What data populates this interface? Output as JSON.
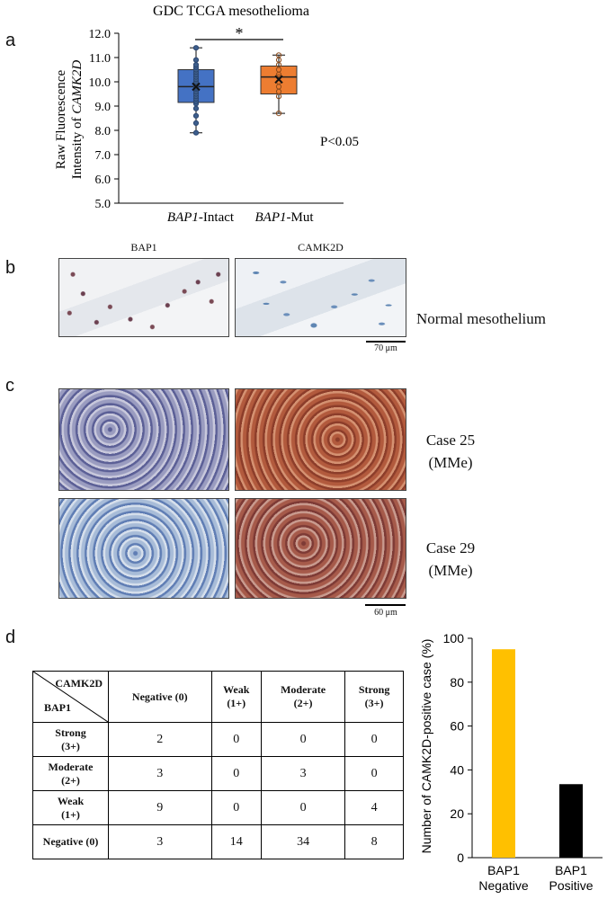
{
  "panel_labels": {
    "a": "a",
    "b": "b",
    "c": "c",
    "d": "d"
  },
  "panel_a": {
    "title": "GDC TCGA mesothelioma",
    "ylabel_plain": "Raw Fluorescence",
    "ylabel_prefix": "Intensity of ",
    "ylabel_gene": "CAMK2D",
    "yticks": [
      "12.0",
      "11.0",
      "10.0",
      "9.0",
      "8.0",
      "7.0",
      "6.0",
      "5.0"
    ],
    "group1_gene": "BAP1",
    "group1_suffix": "-Intact",
    "group2_gene": "BAP1",
    "group2_suffix": "-Mut",
    "significance": "*",
    "pvalue": "P<0.05"
  },
  "panel_b": {
    "col1": "BAP1",
    "col2": "CAMK2D",
    "row_label": "Normal mesothelium",
    "scale": "70 μm"
  },
  "panel_c": {
    "row1_line1": "Case 25",
    "row1_line2": "(MMe)",
    "row2_line1": "Case 29",
    "row2_line2": "(MMe)",
    "scale": "60 μm"
  },
  "panel_d_table": {
    "corner_top": "CAMK2D",
    "corner_bottom": "BAP1",
    "columns": [
      {
        "l1": "Negative (0)",
        "l2": ""
      },
      {
        "l1": "Weak",
        "l2": "(1+)"
      },
      {
        "l1": "Moderate",
        "l2": "(2+)"
      },
      {
        "l1": "Strong",
        "l2": "(3+)"
      }
    ],
    "rows": [
      {
        "l1": "Strong",
        "l2": "(3+)",
        "cells": [
          "2",
          "0",
          "0",
          "0"
        ]
      },
      {
        "l1": "Moderate",
        "l2": "(2+)",
        "cells": [
          "3",
          "0",
          "3",
          "0"
        ]
      },
      {
        "l1": "Weak",
        "l2": "(1+)",
        "cells": [
          "9",
          "0",
          "0",
          "4"
        ]
      },
      {
        "l1": "Negative (0)",
        "l2": "",
        "cells": [
          "3",
          "14",
          "34",
          "8"
        ]
      }
    ]
  },
  "chart_data": [
    {
      "type": "box",
      "title": "GDC TCGA mesothelioma",
      "ylabel": "Raw Fluorescence Intensity of CAMK2D",
      "ylim": [
        5.0,
        12.0
      ],
      "categories": [
        "BAP1-Intact",
        "BAP1-Mut"
      ],
      "series": [
        {
          "category": "BAP1-Intact",
          "color": "#4472c4",
          "whisker_low": 7.9,
          "q1": 9.15,
          "median": 9.8,
          "q3": 10.5,
          "whisker_high": 11.4,
          "mean": 9.8,
          "points": [
            7.9,
            8.3,
            8.6,
            8.9,
            9.1,
            9.2,
            9.3,
            9.4,
            9.5,
            9.6,
            9.7,
            9.75,
            9.8,
            9.85,
            9.9,
            10.0,
            10.1,
            10.2,
            10.3,
            10.4,
            10.5,
            10.6,
            10.7,
            10.9,
            11.4
          ]
        },
        {
          "category": "BAP1-Mut",
          "color": "#ed7d31",
          "whisker_low": 8.7,
          "q1": 9.5,
          "median": 10.2,
          "q3": 10.65,
          "whisker_high": 11.1,
          "mean": 10.1,
          "points": [
            8.7,
            9.4,
            9.6,
            9.8,
            10.0,
            10.2,
            10.3,
            10.5,
            10.7,
            10.9,
            11.1
          ]
        }
      ],
      "annotation": "*",
      "pvalue": "P<0.05"
    },
    {
      "type": "bar",
      "ylabel": "Number of CAMK2D-positive case (%)",
      "ylim": [
        0,
        100
      ],
      "yticks": [
        "100",
        "80",
        "60",
        "40",
        "20",
        "0"
      ],
      "categories": [
        {
          "l1": "BAP1",
          "l2": "Negative"
        },
        {
          "l1": "BAP1",
          "l2": "Positive"
        }
      ],
      "values": [
        95,
        33.5
      ],
      "colors": [
        "#ffc000",
        "#000000"
      ]
    }
  ]
}
